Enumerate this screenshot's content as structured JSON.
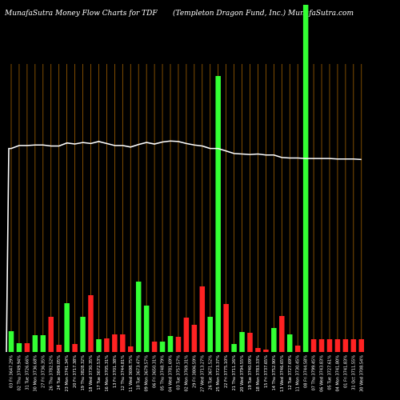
{
  "header": {
    "left": "MunafaSutra  Money Flow  Charts for TDF",
    "right": "(Templeton  Dragon  Fund,  Inc.) MunafaSutra.com"
  },
  "chart_data": {
    "type": "bar",
    "title": "MunafaSutra  Money Flow  Charts for TDF",
    "subtitle": "(Templeton  Dragon  Fund,  Inc.) MunafaSutra.com",
    "categories": [
      "Fri 03 Jan 2025",
      "Thu 02 Jan 2025",
      "Tue 31 Dec 2024",
      "Mon 30 Dec 2024",
      "Fri 27 Dec 2024",
      "Thu 26 Dec 2024",
      "Tue 24 Dec 2024",
      "Mon 23 Dec 2024",
      "Fri 20 Dec 2024",
      "Thu 19 Dec 2024",
      "Wed 18 Dec 2024",
      "Tue 17 Dec 2024",
      "Mon 16 Dec 2024",
      "Fri 13 Dec 2024",
      "Thu 12 Dec 2024",
      "Wed 11 Dec 2024",
      "Tue 10 Dec 2024",
      "Mon 09 Dec 2024",
      "Fri 06 Dec 2024",
      "Thu 05 Dec 2024",
      "Wed 04 Dec 2024",
      "Tue 03 Dec 2024",
      "Mon 02 Dec 2024",
      "Fri 29 Nov 2024",
      "Wed 27 Nov 2024",
      "Tue 26 Nov 2024",
      "Mon 25 Nov 2024",
      "Fri 22 Nov 2024",
      "Thu 21 Nov 2024",
      "Wed 20 Nov 2024",
      "Tue 19 Nov 2024",
      "Mon 18 Nov 2024",
      "Fri 15 Nov 2024",
      "Thu 14 Nov 2024",
      "Wed 13 Nov 2024",
      "Tue 12 Nov 2024",
      "Mon 11 Nov 2024",
      "Fri 08 Nov 2024",
      "Thu 07 Nov 2024",
      "Wed 06 Nov 2024",
      "Tue 05 Nov 2024",
      "Mon 04 Nov 2024",
      "Fri 01 Nov 2024",
      "Thu 31 Oct 2024",
      "Wed 30 Oct 2024"
    ],
    "tick_labels": [
      "03 Fri 3647.29%",
      "02 Thu 3749.94%",
      "31 Tue 3726.66%",
      "30 Mon 3736.68%",
      "27 Fri 3736.35%",
      "26 Thu 3782.52%",
      "24 Tue 3849.05%",
      "23 Mon 3741.34%",
      "20 Fri 3717.38%",
      "19 Thu 3828.32%",
      "18 Wed 3730.35%",
      "17 Tue 3672.53%",
      "16 Mon 3705.31%",
      "13 Fri 3701.38%",
      "12 Thu 3744.81%",
      "11 Wed 3698.75%",
      "10 Tue 3673.47%",
      "09 Mon 3679.57%",
      "06 Fri 3650.31%",
      "05 Thu 3748.79%",
      "04 Wed 3781.69%",
      "03 Tue 3757.57%",
      "02 Mon 3769.31%",
      "29 Fri 3806.59%",
      "27 Wed 3713.27%",
      "26 Tue 3671.52%",
      "25 Mon 3723.37%",
      "22 Fri 3775.10%",
      "21 Thu 3711.26%",
      "20 Wed 3794.55%",
      "19 Tue 3740.09%",
      "18 Mon 3783.33%",
      "15 Fri 3737.65%",
      "14 Thu 3752.90%",
      "13 Wed 3746.65%",
      "12 Tue 3727.69%",
      "11 Mon 3730.45%",
      "08 Fri 3744.58%",
      "07 Thu 3799.45%",
      "06 Wed 3743.83%",
      "05 Tue 3727.61%",
      "04 Mon 3741.80%",
      "01 Fri 3741.83%",
      "31 Oct 3711.55%",
      "30 Wed 3708.54%"
    ],
    "series": [
      {
        "values": [
          26,
          11,
          11,
          21,
          21,
          44,
          9,
          61,
          10,
          44,
          71,
          16,
          17,
          22,
          22,
          7,
          88,
          58,
          13,
          13,
          20,
          19,
          43,
          34,
          82,
          44,
          345,
          60,
          10,
          25,
          24,
          5,
          3,
          30,
          45,
          22,
          8,
          434,
          16,
          16,
          16,
          16,
          16,
          16,
          16
        ],
        "colors": [
          "g",
          "g",
          "r",
          "g",
          "g",
          "r",
          "r",
          "g",
          "r",
          "g",
          "r",
          "g",
          "r",
          "r",
          "r",
          "r",
          "g",
          "g",
          "r",
          "g",
          "g",
          "r",
          "r",
          "r",
          "r",
          "g",
          "g",
          "r",
          "g",
          "g",
          "r",
          "r",
          "r",
          "g",
          "r",
          "g",
          "r",
          "g",
          "r",
          "r",
          "r",
          "r",
          "r",
          "r",
          "r"
        ]
      },
      {
        "values": [
          2.3,
          2.9,
          2.9,
          3.0,
          3.0,
          2.8,
          2.8,
          3.4,
          3.2,
          3.5,
          3.3,
          3.7,
          3.3,
          2.9,
          2.9,
          2.6,
          3.1,
          3.5,
          3.2,
          3.6,
          3.8,
          3.7,
          3.3,
          3.0,
          2.8,
          2.3,
          2.3,
          1.8,
          1.3,
          1.2,
          1.1,
          1.2,
          1.0,
          1.0,
          0.5,
          0.4,
          0.4,
          0.3,
          0.3,
          0.3,
          0.3,
          0.2,
          0.2,
          0.2,
          0.1
        ]
      }
    ],
    "colors": {
      "green": "#33ff33",
      "red": "#ff2222",
      "line": "#ffffff",
      "grid": "#b36b00"
    }
  }
}
